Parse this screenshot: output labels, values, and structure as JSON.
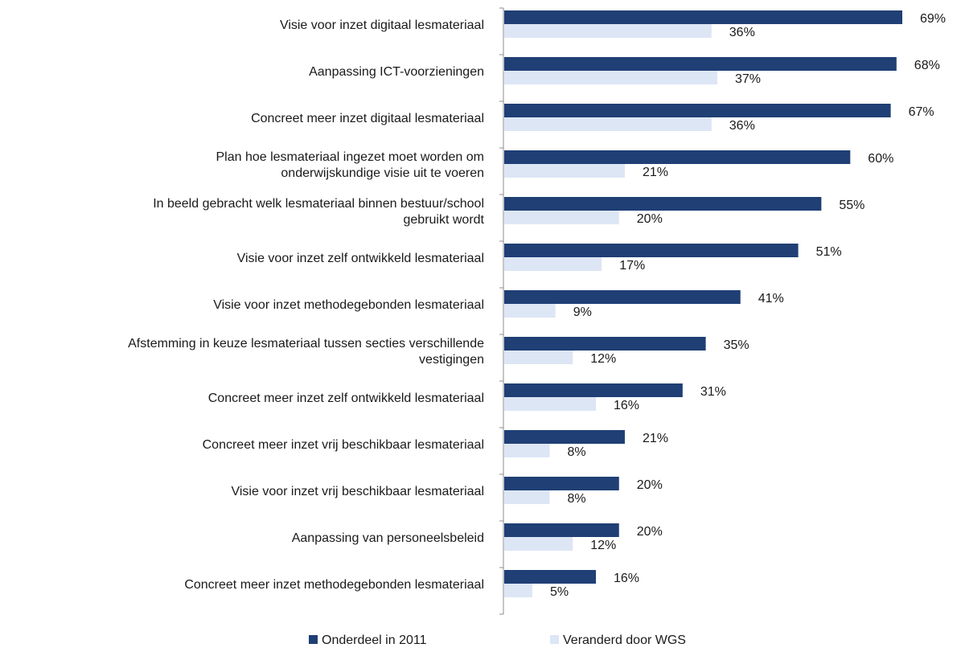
{
  "chart_data": {
    "type": "bar",
    "orientation": "horizontal",
    "title": "",
    "xlabel": "",
    "ylabel": "",
    "xlim": [
      0,
      69
    ],
    "grid": false,
    "legend_position": "bottom",
    "value_suffix": "%",
    "categories": [
      "Visie voor inzet digitaal lesmateriaal",
      "Aanpassing ICT-voorzieningen",
      "Concreet meer inzet digitaal lesmateriaal",
      "Plan hoe lesmateriaal ingezet moet worden om onderwijskundige visie uit te voeren",
      "In beeld gebracht welk lesmateriaal binnen bestuur/school gebruikt wordt",
      "Visie voor inzet zelf ontwikkeld lesmateriaal",
      "Visie voor inzet methodegebonden lesmateriaal",
      "Afstemming in keuze lesmateriaal tussen secties verschillende vestigingen",
      "Concreet meer inzet zelf ontwikkeld lesmateriaal",
      "Concreet meer inzet vrij beschikbaar lesmateriaal",
      "Visie voor inzet vrij beschikbaar lesmateriaal",
      "Aanpassing van personeelsbeleid",
      "Concreet meer inzet methodegebonden lesmateriaal"
    ],
    "category_lines": [
      [
        "Visie voor inzet digitaal lesmateriaal"
      ],
      [
        "Aanpassing ICT-voorzieningen"
      ],
      [
        "Concreet meer inzet digitaal lesmateriaal"
      ],
      [
        "Plan hoe lesmateriaal ingezet moet worden om",
        "onderwijskundige visie uit te voeren"
      ],
      [
        "In beeld gebracht welk lesmateriaal binnen bestuur/school",
        "gebruikt wordt"
      ],
      [
        "Visie voor inzet zelf ontwikkeld lesmateriaal"
      ],
      [
        "Visie voor inzet methodegebonden lesmateriaal"
      ],
      [
        "Afstemming in keuze lesmateriaal tussen secties verschillende",
        "vestigingen"
      ],
      [
        "Concreet meer inzet zelf ontwikkeld lesmateriaal"
      ],
      [
        "Concreet meer inzet vrij beschikbaar lesmateriaal"
      ],
      [
        "Visie voor inzet vrij beschikbaar lesmateriaal"
      ],
      [
        "Aanpassing van personeelsbeleid"
      ],
      [
        "Concreet meer inzet methodegebonden lesmateriaal"
      ]
    ],
    "series": [
      {
        "name": "Onderdeel in 2011",
        "color": "#1f3f75",
        "values": [
          69,
          68,
          67,
          60,
          55,
          51,
          41,
          35,
          31,
          21,
          20,
          20,
          16
        ]
      },
      {
        "name": "Veranderd door WGS",
        "color": "#dde6f5",
        "values": [
          36,
          37,
          36,
          21,
          20,
          17,
          9,
          12,
          16,
          8,
          8,
          12,
          5
        ]
      }
    ]
  }
}
